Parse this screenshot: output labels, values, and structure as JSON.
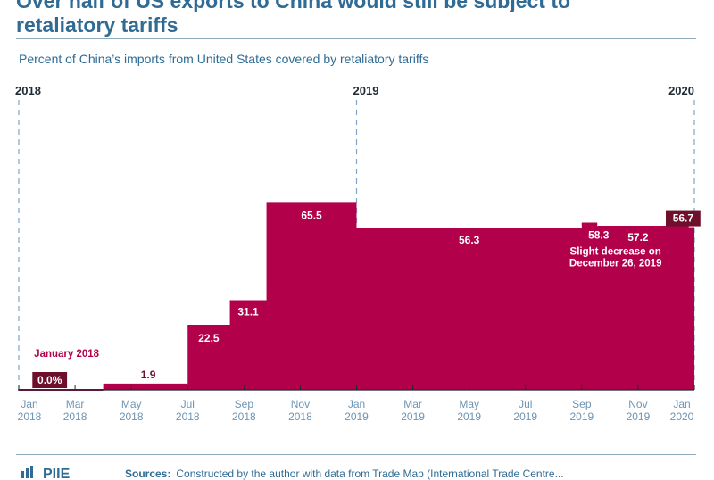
{
  "headline": {
    "line1": "Over half of US exports to China would still be subject to",
    "line2": "retaliatory tariffs"
  },
  "subtitle": "Percent of China’s imports from United States covered by retaliatory tariffs",
  "colors": {
    "bar_fill": "#b3004a",
    "label_box": "#6e0f2c",
    "title_blue": "#2f6b94",
    "axis_blue": "#6d94b3",
    "year_marker_dash": "#7fa3c4"
  },
  "chart_data": {
    "type": "area",
    "title": "Percent of China’s imports from United States covered by retaliatory tariffs",
    "xlabel": "",
    "ylabel": "Percent",
    "ylim": [
      0,
      100
    ],
    "x_range_months": [
      0,
      24
    ],
    "step_series": [
      {
        "start_month": 0,
        "end_month": 3,
        "value": 0.0
      },
      {
        "start_month": 3,
        "end_month": 6,
        "value": 1.9
      },
      {
        "start_month": 6,
        "end_month": 7.5,
        "value": 22.5
      },
      {
        "start_month": 7.5,
        "end_month": 8.8,
        "value": 31.1
      },
      {
        "start_month": 8.8,
        "end_month": 12,
        "value": 65.5
      },
      {
        "start_month": 12,
        "end_month": 20,
        "value": 56.3
      },
      {
        "start_month": 20,
        "end_month": 20.55,
        "value": 58.3
      },
      {
        "start_month": 20.55,
        "end_month": 23.8,
        "value": 57.2
      },
      {
        "start_month": 23.8,
        "end_month": 24,
        "value": 56.7
      }
    ],
    "data_labels": [
      {
        "text": "0.0%",
        "month": 1.1,
        "value": 0.0,
        "boxed": true,
        "above": 7
      },
      {
        "text": "1.9",
        "month": 4.6,
        "value": 1.9,
        "boxed": false,
        "above": 7
      },
      {
        "text": "22.5",
        "month": 6.75,
        "value": 22.5,
        "boxed": false,
        "below": 6
      },
      {
        "text": "31.1",
        "month": 8.15,
        "value": 31.1,
        "boxed": false,
        "below": 4
      },
      {
        "text": "65.5",
        "month": 10.4,
        "value": 65.5,
        "boxed": false,
        "below": 6
      },
      {
        "text": "56.3",
        "month": 16.0,
        "value": 56.3,
        "boxed": false,
        "below": 4
      },
      {
        "text": "58.3",
        "month": 20.6,
        "value": 58.3,
        "boxed": false,
        "below": 5
      },
      {
        "text": "57.2",
        "month": 22.0,
        "value": 57.2,
        "boxed": false,
        "below": 4
      },
      {
        "text": "56.7",
        "month": 23.6,
        "value": 56.7,
        "boxed": true,
        "above": 7
      }
    ],
    "annotations": [
      {
        "text": "January 2018",
        "month": 1.7,
        "value": 0,
        "above": 11,
        "color": "#b3004a"
      },
      {
        "text": "Slight decrease on",
        "month": 21.2,
        "value": 56.7,
        "below": 13,
        "color": "#ffffff"
      },
      {
        "text": "December 26, 2019",
        "month": 21.2,
        "value": 56.7,
        "below": 15,
        "color": "#ffffff"
      }
    ],
    "year_markers": [
      {
        "label": "2018",
        "month": 0
      },
      {
        "label": "2019",
        "month": 12
      },
      {
        "label": "2020",
        "month": 24
      }
    ],
    "x_ticks": [
      {
        "month": 0,
        "line1": "Jan",
        "line2": "2018"
      },
      {
        "month": 2,
        "line1": "Mar",
        "line2": "2018"
      },
      {
        "month": 4,
        "line1": "May",
        "line2": "2018"
      },
      {
        "month": 6,
        "line1": "Jul",
        "line2": "2018"
      },
      {
        "month": 8,
        "line1": "Sep",
        "line2": "2018"
      },
      {
        "month": 10,
        "line1": "Nov",
        "line2": "2018"
      },
      {
        "month": 12,
        "line1": "Jan",
        "line2": "2019"
      },
      {
        "month": 14,
        "line1": "Mar",
        "line2": "2019"
      },
      {
        "month": 16,
        "line1": "May",
        "line2": "2019"
      },
      {
        "month": 18,
        "line1": "Jul",
        "line2": "2019"
      },
      {
        "month": 20,
        "line1": "Sep",
        "line2": "2019"
      },
      {
        "month": 22,
        "line1": "Nov",
        "line2": "2019"
      },
      {
        "month": 24,
        "line1": "Jan",
        "line2": "2020"
      }
    ]
  },
  "footer": {
    "logo_text": "PIIE",
    "sources_label": "Sources:",
    "sources_text": "Constructed by the author with data from Trade Map (International Trade Centre..."
  }
}
